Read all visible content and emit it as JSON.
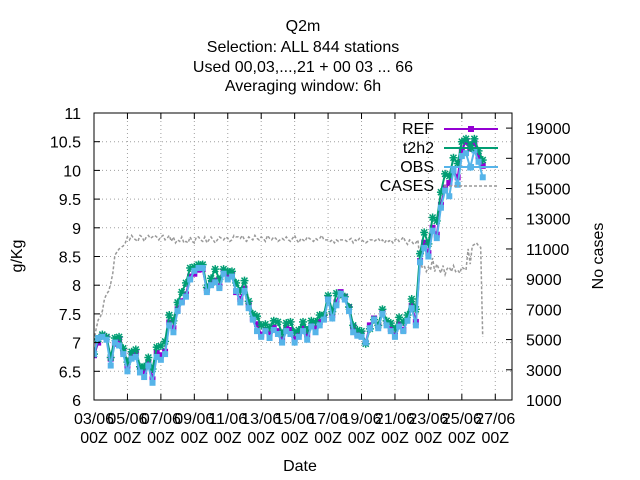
{
  "chart_data": {
    "type": "line",
    "title_lines": [
      "Q2m",
      "Selection: ALL    844 stations",
      "Used  00,03,...,21  + 00 03 ... 66",
      "Averaging window:  6h"
    ],
    "xlabel": "Date",
    "ylabel": "g/Kg",
    "y2label": "No cases",
    "grid": true,
    "legend_position": "top-right",
    "xlim": [
      "2016-06-03T00:00",
      "2016-06-28T00:00"
    ],
    "ylim": [
      6,
      11
    ],
    "y2lim": [
      1000,
      20000
    ],
    "x_ticks": [
      {
        "date": "2016-06-03T00:00",
        "line1": "03/06",
        "line2": "00Z"
      },
      {
        "date": "2016-06-05T00:00",
        "line1": "05/06",
        "line2": "00Z"
      },
      {
        "date": "2016-06-07T00:00",
        "line1": "07/06",
        "line2": "00Z"
      },
      {
        "date": "2016-06-09T00:00",
        "line1": "09/06",
        "line2": "00Z"
      },
      {
        "date": "2016-06-11T00:00",
        "line1": "11/06",
        "line2": "00Z"
      },
      {
        "date": "2016-06-13T00:00",
        "line1": "13/06",
        "line2": "00Z"
      },
      {
        "date": "2016-06-15T00:00",
        "line1": "15/06",
        "line2": "00Z"
      },
      {
        "date": "2016-06-17T00:00",
        "line1": "17/06",
        "line2": "00Z"
      },
      {
        "date": "2016-06-19T00:00",
        "line1": "19/06",
        "line2": "00Z"
      },
      {
        "date": "2016-06-21T00:00",
        "line1": "21/06",
        "line2": "00Z"
      },
      {
        "date": "2016-06-23T00:00",
        "line1": "23/06",
        "line2": "00Z"
      },
      {
        "date": "2016-06-25T00:00",
        "line1": "25/06",
        "line2": "00Z"
      },
      {
        "date": "2016-06-27T00:00",
        "line1": "27/06",
        "line2": "00Z"
      }
    ],
    "y_ticks": [
      "6",
      "6.5",
      "7",
      "7.5",
      "8",
      "8.5",
      "9",
      "9.5",
      "10",
      "10.5",
      "11"
    ],
    "y2_ticks": [
      "1000",
      "3000",
      "5000",
      "7000",
      "9000",
      "11000",
      "13000",
      "15000",
      "17000",
      "19000"
    ],
    "x_start_date": "2016-06-03T00:00",
    "x_step_hours": 6,
    "series": [
      {
        "name": "REF",
        "color": "#9400d3",
        "axis": "y1",
        "dash": false,
        "marker": "filled-square",
        "values": [
          6.78,
          7.0,
          7.12,
          7.08,
          6.72,
          6.98,
          7.06,
          6.84,
          6.6,
          6.78,
          6.82,
          6.55,
          6.5,
          6.66,
          6.36,
          6.82,
          6.78,
          6.84,
          7.35,
          7.25,
          7.58,
          7.72,
          7.84,
          8.15,
          8.2,
          8.27,
          8.28,
          7.92,
          8.04,
          8.08,
          7.98,
          8.24,
          8.15,
          8.18,
          7.88,
          7.76,
          7.94,
          7.66,
          7.42,
          7.32,
          7.14,
          7.22,
          7.16,
          7.26,
          7.2,
          7.04,
          7.25,
          7.22,
          7.06,
          7.16,
          7.26,
          7.14,
          7.3,
          7.25,
          7.36,
          7.42,
          7.76,
          7.48,
          7.7,
          7.88,
          7.8,
          7.62,
          7.28,
          7.15,
          7.16,
          7.0,
          7.3,
          7.42,
          7.3,
          7.52,
          7.34,
          7.24,
          7.12,
          7.32,
          7.22,
          7.4,
          7.64,
          7.36,
          8.42,
          8.74,
          8.56,
          9.0,
          8.88,
          9.4,
          9.7,
          9.78,
          9.98,
          9.88,
          10.36,
          10.5,
          10.38,
          10.48,
          10.24,
          10.08
        ]
      },
      {
        "name": "t2h2",
        "color": "#009e73",
        "axis": "y1",
        "dash": false,
        "marker": "star",
        "values": [
          6.8,
          7.06,
          7.14,
          7.1,
          6.74,
          7.08,
          7.1,
          6.9,
          6.66,
          6.84,
          6.88,
          6.58,
          6.58,
          6.74,
          6.54,
          6.92,
          6.94,
          7.02,
          7.48,
          7.38,
          7.7,
          7.88,
          8.04,
          8.3,
          8.32,
          8.36,
          8.36,
          7.96,
          8.12,
          8.28,
          8.1,
          8.28,
          8.24,
          8.24,
          8.04,
          7.9,
          8.08,
          7.72,
          7.5,
          7.46,
          7.3,
          7.32,
          7.26,
          7.38,
          7.36,
          7.16,
          7.34,
          7.36,
          7.18,
          7.22,
          7.36,
          7.22,
          7.38,
          7.36,
          7.48,
          7.48,
          7.82,
          7.54,
          7.86,
          7.84,
          7.8,
          7.62,
          7.3,
          7.22,
          7.2,
          6.98,
          7.24,
          7.4,
          7.3,
          7.58,
          7.38,
          7.34,
          7.24,
          7.44,
          7.36,
          7.48,
          7.76,
          7.58,
          8.55,
          8.92,
          8.72,
          9.18,
          9.12,
          9.62,
          9.94,
          9.9,
          10.22,
          10.12,
          10.5,
          10.55,
          10.44,
          10.55,
          10.34,
          10.18
        ]
      },
      {
        "name": "OBS",
        "color": "#56b4e9",
        "axis": "y1",
        "dash": false,
        "marker": "filled-square",
        "values": [
          6.8,
          7.08,
          7.1,
          7.05,
          6.6,
          7.0,
          6.95,
          6.8,
          6.5,
          6.72,
          6.75,
          6.48,
          6.4,
          6.6,
          6.3,
          6.75,
          6.7,
          6.8,
          7.3,
          7.18,
          7.55,
          7.7,
          7.8,
          8.1,
          8.25,
          8.3,
          8.3,
          7.88,
          8.0,
          8.05,
          7.95,
          8.2,
          8.1,
          8.15,
          7.9,
          7.7,
          7.9,
          7.6,
          7.4,
          7.2,
          7.1,
          7.2,
          7.08,
          7.22,
          7.15,
          7.0,
          7.2,
          7.15,
          7.0,
          7.1,
          7.2,
          7.05,
          7.28,
          7.18,
          7.3,
          7.4,
          7.75,
          7.42,
          7.65,
          7.85,
          7.75,
          7.55,
          7.18,
          7.12,
          7.1,
          7.0,
          7.25,
          7.4,
          7.25,
          7.5,
          7.3,
          7.2,
          7.1,
          7.28,
          7.2,
          7.38,
          7.6,
          7.3,
          8.4,
          8.65,
          8.5,
          8.95,
          8.82,
          9.35,
          9.65,
          9.55,
          10.0,
          9.75,
          10.25,
          10.3,
          10.05,
          10.35,
          10.15,
          9.88
        ]
      },
      {
        "name": "CASES",
        "color": "#999999",
        "axis": "y2",
        "dash": true,
        "marker": "none",
        "x_step_hours": 3,
        "values": [
          4900,
          5700,
          6300,
          6500,
          6900,
          7700,
          8000,
          8200,
          8700,
          9400,
          10600,
          10800,
          11000,
          11100,
          11200,
          11400,
          11800,
          11600,
          11900,
          11700,
          11600,
          11500,
          11900,
          11800,
          11500,
          11800,
          11900,
          11700,
          11800,
          11900,
          11800,
          11600,
          11800,
          11900,
          11600,
          11700,
          11900,
          11500,
          11800,
          11400,
          11600,
          11500,
          11800,
          11400,
          11500,
          11400,
          11800,
          11500,
          11400,
          11800,
          11800,
          11600,
          11500,
          11800,
          11400,
          11600,
          11800,
          11600,
          11400,
          11600,
          11800,
          11700,
          11600,
          11800,
          11700,
          11500,
          11600,
          11900,
          11800,
          11800,
          11700,
          11900,
          11600,
          11500,
          11800,
          11700,
          11600,
          11900,
          11700,
          11600,
          11800,
          11700,
          11500,
          11900,
          11700,
          11600,
          11800,
          11700,
          11500,
          11600,
          11700,
          11600,
          11800,
          11600,
          11500,
          11700,
          11900,
          11600,
          11400,
          11700,
          11600,
          11500,
          11800,
          11700,
          11600,
          11500,
          11700,
          11600,
          11700,
          11900,
          11600,
          11600,
          11600,
          11500,
          11600,
          11400,
          11600,
          11500,
          11600,
          11600,
          11600,
          11500,
          11600,
          11700,
          11400,
          11600,
          11500,
          11700,
          11600,
          11500,
          11400,
          11500,
          11600,
          11600,
          11500,
          11600,
          11700,
          11500,
          11600,
          11400,
          11600,
          11500,
          11600,
          11400,
          11600,
          11700,
          11500,
          11600,
          11800,
          11500,
          11300,
          11600,
          11500,
          11300,
          11400,
          11600,
          10200,
          9800,
          9900,
          9500,
          9800,
          9600,
          10400,
          9500,
          10000,
          9700,
          9400,
          9900,
          9300,
          9700,
          9800,
          9500,
          9900,
          9500,
          9600,
          9400,
          9800,
          9700,
          9600,
          11000,
          10000,
          11200,
          11300,
          11400,
          11200,
          11100,
          5200
        ]
      }
    ]
  }
}
